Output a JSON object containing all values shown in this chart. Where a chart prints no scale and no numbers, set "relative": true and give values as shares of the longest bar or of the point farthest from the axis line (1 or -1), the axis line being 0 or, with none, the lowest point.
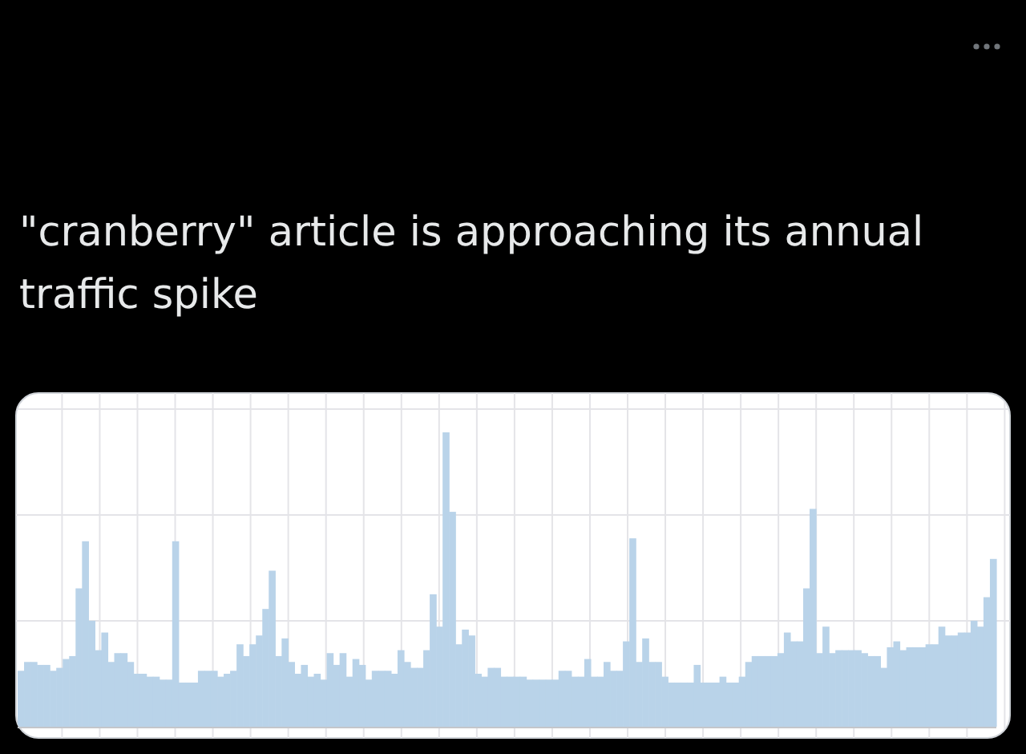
{
  "chart_data": {
    "type": "bar",
    "title": "\"cranberry\" article is approaching its annual traffic spike",
    "relative": true,
    "grid": true,
    "color": "#b9d3e9",
    "categories": [
      null,
      null,
      null,
      null,
      null,
      null,
      null,
      null,
      null,
      null,
      null,
      null,
      null,
      null,
      null,
      null,
      null,
      null,
      null,
      null,
      null,
      null,
      null,
      null,
      null,
      null,
      null,
      null,
      null,
      null,
      null,
      null,
      null,
      null,
      null,
      null,
      null,
      null,
      null,
      null,
      null,
      null,
      null,
      null,
      null,
      null,
      null,
      null,
      null,
      null,
      null,
      null,
      null,
      null,
      null,
      null,
      null,
      null,
      null,
      null,
      null,
      null,
      null,
      null,
      null,
      null,
      null,
      null,
      null,
      null,
      null,
      null,
      null,
      null,
      null,
      null,
      null,
      null,
      null,
      null,
      null,
      null,
      null,
      null,
      null,
      null,
      null,
      null,
      null,
      null,
      null,
      null,
      null,
      null,
      null,
      null,
      null,
      null,
      null,
      null,
      null,
      null,
      null,
      null,
      null,
      null,
      null,
      null,
      null,
      null,
      null,
      null,
      null,
      null,
      null,
      null,
      null,
      null,
      null,
      null,
      null,
      null,
      null,
      null,
      null,
      null,
      null,
      null,
      null,
      null,
      null,
      null,
      null,
      null,
      null,
      null,
      null,
      null,
      null,
      null,
      null,
      null,
      null,
      null,
      null,
      null,
      null,
      null,
      null,
      null,
      null,
      null
    ],
    "values": [
      0.19,
      0.22,
      0.22,
      0.21,
      0.21,
      0.19,
      0.2,
      0.23,
      0.24,
      0.47,
      0.63,
      0.36,
      0.26,
      0.32,
      0.22,
      0.25,
      0.25,
      0.22,
      0.18,
      0.18,
      0.17,
      0.17,
      0.16,
      0.16,
      0.63,
      0.15,
      0.15,
      0.15,
      0.19,
      0.19,
      0.19,
      0.17,
      0.18,
      0.19,
      0.28,
      0.24,
      0.28,
      0.31,
      0.4,
      0.53,
      0.24,
      0.3,
      0.22,
      0.18,
      0.21,
      0.17,
      0.18,
      0.16,
      0.25,
      0.21,
      0.25,
      0.17,
      0.23,
      0.21,
      0.16,
      0.19,
      0.19,
      0.19,
      0.18,
      0.26,
      0.22,
      0.2,
      0.2,
      0.26,
      0.45,
      0.34,
      1,
      0.73,
      0.28,
      0.33,
      0.31,
      0.18,
      0.17,
      0.2,
      0.2,
      0.17,
      0.17,
      0.17,
      0.17,
      0.16,
      0.16,
      0.16,
      0.16,
      0.16,
      0.19,
      0.19,
      0.17,
      0.17,
      0.23,
      0.17,
      0.17,
      0.22,
      0.19,
      0.19,
      0.29,
      0.64,
      0.22,
      0.3,
      0.22,
      0.22,
      0.17,
      0.15,
      0.15,
      0.15,
      0.15,
      0.21,
      0.15,
      0.15,
      0.15,
      0.17,
      0.15,
      0.15,
      0.17,
      0.22,
      0.24,
      0.24,
      0.24,
      0.24,
      0.25,
      0.32,
      0.29,
      0.29,
      0.47,
      0.74,
      0.25,
      0.34,
      0.25,
      0.26,
      0.26,
      0.26,
      0.26,
      0.25,
      0.24,
      0.24,
      0.2,
      0.27,
      0.29,
      0.26,
      0.27,
      0.27,
      0.27,
      0.28,
      0.28,
      0.34,
      0.31,
      0.31,
      0.32,
      0.32,
      0.36,
      0.34,
      0.44,
      0.57
    ]
  }
}
